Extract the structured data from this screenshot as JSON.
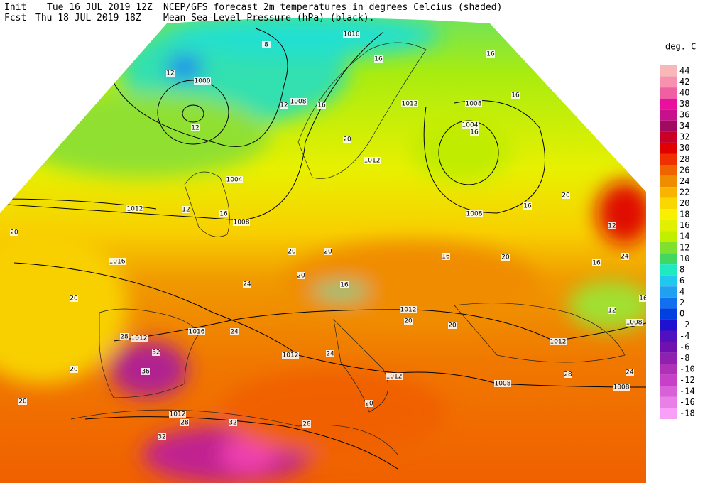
{
  "header": {
    "init_label": "Init",
    "init_time": "Tue 16 JUL 2019 12Z",
    "fcst_label": "Fcst",
    "fcst_time": "Thu 18 JUL 2019 18Z",
    "title_line1": "NCEP/GFS forecast 2m temperatures in degrees Celcius (shaded)",
    "title_line2": "Mean Sea-Level Pressure (hPa) (black)."
  },
  "legend": {
    "title": "deg. C",
    "ticks": [
      44,
      42,
      40,
      38,
      36,
      34,
      32,
      30,
      28,
      26,
      24,
      22,
      20,
      18,
      16,
      14,
      12,
      10,
      8,
      6,
      4,
      2,
      0,
      -2,
      -4,
      -6,
      -8,
      -10,
      -12,
      -14,
      -16,
      -18
    ],
    "colors": [
      "#f8b8b8",
      "#f890b0",
      "#f060a0",
      "#e8109c",
      "#c8108c",
      "#a00a60",
      "#c80028",
      "#e00000",
      "#f03000",
      "#f06400",
      "#f08c00",
      "#f8b400",
      "#f8d800",
      "#f8f000",
      "#e0f000",
      "#c0f000",
      "#80e030",
      "#40d860",
      "#20e8c0",
      "#20c8f0",
      "#20a0f0",
      "#1070f0",
      "#0040e0",
      "#2010d0",
      "#5010c0",
      "#7010b0",
      "#9020b0",
      "#b030b8",
      "#c840c8",
      "#d860d8",
      "#e880e8",
      "#f8a0f8"
    ]
  },
  "map": {
    "isobar_labels": [
      "1016",
      "1000",
      "1008",
      "1012",
      "1008",
      "1004",
      "1012",
      "1004",
      "1012",
      "1008",
      "1008",
      "1016",
      "1012",
      "1008",
      "1016",
      "1012",
      "1012",
      "1012",
      "1012",
      "1008",
      "1008",
      "1012"
    ],
    "temperature_labels": [
      "8",
      "12",
      "12",
      "12",
      "16",
      "16",
      "16",
      "16",
      "16",
      "20",
      "20",
      "16",
      "12",
      "16",
      "20",
      "20",
      "20",
      "16",
      "20",
      "12",
      "24",
      "16",
      "24",
      "16",
      "20",
      "16",
      "12",
      "20",
      "24",
      "28",
      "32",
      "36",
      "20",
      "20",
      "28",
      "32",
      "32",
      "24",
      "20",
      "20",
      "24",
      "28",
      "20",
      "28"
    ]
  }
}
